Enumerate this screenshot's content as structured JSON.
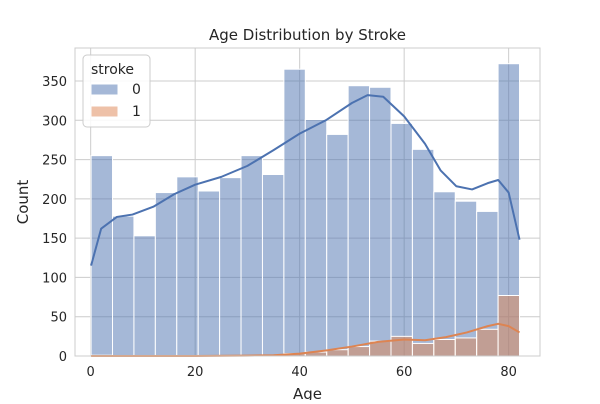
{
  "chart_data": {
    "type": "histogram",
    "title": "Age Distribution by Stroke",
    "xlabel": "Age",
    "ylabel": "Count",
    "xlim": [
      -3,
      86
    ],
    "ylim": [
      0,
      392
    ],
    "xticks": [
      0,
      20,
      40,
      60,
      80
    ],
    "yticks": [
      0,
      50,
      100,
      150,
      200,
      250,
      300,
      350
    ],
    "grid": true,
    "legend": {
      "title": "stroke",
      "placement": "top-left"
    },
    "bin_edges": [
      0.08,
      4.18,
      8.28,
      12.38,
      16.48,
      20.58,
      24.68,
      28.78,
      32.88,
      36.98,
      41.08,
      45.18,
      49.28,
      53.38,
      57.48,
      61.58,
      65.68,
      69.78,
      73.88,
      77.98,
      82.08
    ],
    "series": [
      {
        "name": "0",
        "color": "#4c72b0",
        "values": [
          255,
          178,
          153,
          208,
          228,
          210,
          227,
          255,
          231,
          365,
          301,
          282,
          344,
          342,
          296,
          263,
          209,
          197,
          184,
          372
        ],
        "kde": [
          [
            0.08,
            115
          ],
          [
            2,
            162
          ],
          [
            5,
            177
          ],
          [
            8,
            180
          ],
          [
            12,
            190
          ],
          [
            16,
            206
          ],
          [
            20,
            218
          ],
          [
            25,
            228
          ],
          [
            30,
            242
          ],
          [
            35,
            262
          ],
          [
            40,
            283
          ],
          [
            45,
            300
          ],
          [
            50,
            322
          ],
          [
            53,
            332
          ],
          [
            56,
            330
          ],
          [
            60,
            305
          ],
          [
            64,
            270
          ],
          [
            67,
            236
          ],
          [
            70,
            216
          ],
          [
            73,
            212
          ],
          [
            76,
            220
          ],
          [
            78,
            224
          ],
          [
            80,
            208
          ],
          [
            82.08,
            148
          ]
        ]
      },
      {
        "name": "1",
        "color": "#dd8452",
        "values": [
          1,
          0,
          0,
          0,
          0,
          0,
          0,
          0,
          1,
          3,
          5,
          8,
          12,
          19,
          25,
          16,
          21,
          23,
          34,
          77
        ],
        "kde": [
          [
            0.08,
            0
          ],
          [
            20,
            0
          ],
          [
            30,
            0.5
          ],
          [
            35,
            1
          ],
          [
            40,
            3
          ],
          [
            45,
            7
          ],
          [
            50,
            12
          ],
          [
            55,
            18
          ],
          [
            60,
            21
          ],
          [
            64,
            20
          ],
          [
            68,
            24
          ],
          [
            72,
            30
          ],
          [
            76,
            38
          ],
          [
            78,
            41
          ],
          [
            80,
            38
          ],
          [
            82.08,
            30
          ]
        ]
      }
    ]
  }
}
